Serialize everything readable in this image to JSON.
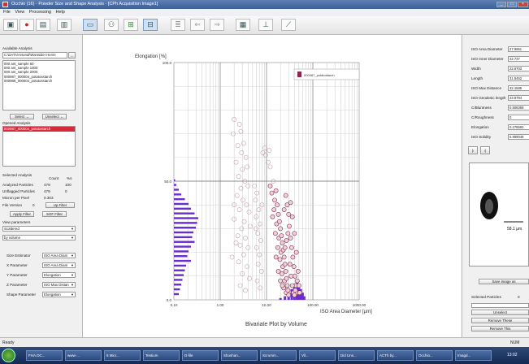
{
  "window": {
    "title": "Occhio (16) · Powder Size and Shape Analysis · [CPh Acquisition Image1]"
  },
  "menu": [
    "File",
    "View",
    "Processing",
    "Help"
  ],
  "left_panel": {
    "available_label": "Available Analysis",
    "path": "C:\\DATA\\Arsenal\\Warssider Henre",
    "files": [
      "000 ant_sample 60",
      "000 ant_sample 1000",
      "000 ant_sample 2000",
      "000987_000004_potatosstarch",
      "000988_000004_potatosstarch"
    ],
    "select_label": "Select →",
    "unselect_label": "Unselect ←",
    "opened_label": "Opened Analysis",
    "opened_item": "000987_000004_potatostarch",
    "selected_label": "Selected Analysis",
    "count_label": "Count",
    "pct_label": "%s",
    "rows": [
      {
        "label": "Analyzed Particles",
        "count": "479",
        "pct": "100"
      },
      {
        "label": "Unflagged Particles",
        "count": "479",
        "pct": "0"
      },
      {
        "label": "Micron per Pixel",
        "count": "0.303",
        "pct": ""
      }
    ],
    "filter_label": "File Version",
    "filter_value": "0",
    "up_filter": "Up Filter",
    "apply_filter": "Apply Filter",
    "sof_filter": "SOF Filter",
    "view_params": "View parameters",
    "view_mode": "Scattered",
    "weight_mode": "by volume",
    "params": [
      {
        "label": "Size Estimator",
        "value": "ISO Area Diam"
      },
      {
        "label": "X Parameter",
        "value": "ISO Area Diam"
      },
      {
        "label": "Y Parameter",
        "value": "Elongation"
      },
      {
        "label": "Z Parameter",
        "value": "ISO Max Distan"
      },
      {
        "label": "Shape Parameter",
        "value": "Elongation"
      }
    ]
  },
  "chart_data": {
    "type": "scatter",
    "title": "Bivariate Plot by Volume",
    "xlabel": "ISO Area Diameter [µm]",
    "ylabel": "Elongation [%]",
    "x_scale": "log",
    "xlim": [
      0.1,
      1000
    ],
    "ylim": [
      0,
      100
    ],
    "x_ticks": [
      "0.10",
      "1.00",
      "10.00",
      "100.00",
      "1000.00"
    ],
    "y_ticks": [
      "100.0",
      "50.0",
      "0.0"
    ],
    "legend": [
      "000987_potatostarch"
    ],
    "legend_position": "top-right",
    "grid": true,
    "series_color": "#c0a0b0",
    "dense_color": "#8b2a48",
    "hist_color": "#6a2dd0",
    "points": [
      [
        2.0,
        76
      ],
      [
        2.6,
        74
      ],
      [
        1.9,
        70
      ],
      [
        2.8,
        71
      ],
      [
        2.4,
        65
      ],
      [
        3.2,
        66
      ],
      [
        2.9,
        62
      ],
      [
        3.6,
        60
      ],
      [
        2.2,
        58
      ],
      [
        3.0,
        55
      ],
      [
        3.8,
        56
      ],
      [
        2.5,
        52
      ],
      [
        3.4,
        50
      ],
      [
        2.8,
        47
      ],
      [
        4.0,
        48
      ],
      [
        2.3,
        44
      ],
      [
        3.1,
        42
      ],
      [
        3.7,
        40
      ],
      [
        2.6,
        38
      ],
      [
        4.2,
        37
      ],
      [
        2.0,
        34
      ],
      [
        3.3,
        33
      ],
      [
        2.9,
        30
      ],
      [
        4.4,
        31
      ],
      [
        2.4,
        27
      ],
      [
        3.5,
        26
      ],
      [
        2.7,
        23
      ],
      [
        4.0,
        22
      ],
      [
        3.2,
        19
      ],
      [
        2.5,
        16
      ],
      [
        3.8,
        14
      ],
      [
        3.0,
        11
      ],
      [
        4.3,
        9
      ],
      [
        2.7,
        6
      ],
      [
        3.5,
        4
      ],
      [
        2.2,
        24
      ],
      [
        2.0,
        40
      ],
      [
        1.8,
        18
      ],
      [
        5.5,
        48
      ],
      [
        6.2,
        45
      ],
      [
        5.8,
        42
      ],
      [
        6.8,
        38
      ],
      [
        6.0,
        35
      ],
      [
        7.2,
        32
      ],
      [
        6.5,
        28
      ],
      [
        7.5,
        25
      ],
      [
        6.1,
        22
      ],
      [
        7.0,
        19
      ],
      [
        6.6,
        15
      ],
      [
        7.8,
        12
      ],
      [
        6.3,
        8
      ],
      [
        7.3,
        5
      ],
      [
        5.9,
        30
      ],
      [
        8.0,
        40
      ],
      [
        8.3,
        62
      ],
      [
        9.2,
        64
      ],
      [
        9.6,
        61
      ],
      [
        10.8,
        58
      ],
      [
        11.4,
        63
      ],
      [
        12.0,
        56
      ],
      [
        12,
        48
      ],
      [
        13,
        45
      ],
      [
        14,
        50
      ],
      [
        15,
        42
      ],
      [
        16,
        46
      ],
      [
        14.5,
        38
      ],
      [
        13.5,
        35
      ],
      [
        17,
        40
      ],
      [
        18,
        36
      ],
      [
        16.5,
        32
      ],
      [
        15.5,
        28
      ],
      [
        19,
        33
      ],
      [
        20,
        30
      ],
      [
        18.5,
        26
      ],
      [
        17.5,
        22
      ],
      [
        21,
        27
      ],
      [
        22,
        24
      ],
      [
        20.5,
        20
      ],
      [
        19.5,
        17
      ],
      [
        23,
        21
      ],
      [
        24,
        18
      ],
      [
        22.5,
        14
      ],
      [
        21.5,
        11
      ],
      [
        25,
        15
      ],
      [
        26,
        12
      ],
      [
        24.5,
        8
      ],
      [
        23.5,
        5
      ],
      [
        27,
        9
      ],
      [
        28,
        6
      ],
      [
        26.5,
        3
      ],
      [
        29,
        4
      ],
      [
        30,
        2
      ],
      [
        16,
        18
      ],
      [
        18,
        12
      ],
      [
        20,
        8
      ],
      [
        22,
        6
      ],
      [
        25,
        22
      ],
      [
        27,
        25
      ],
      [
        29,
        28
      ],
      [
        31,
        31
      ],
      [
        33,
        26
      ],
      [
        35,
        22
      ],
      [
        37,
        18
      ],
      [
        39,
        14
      ],
      [
        41,
        10
      ],
      [
        43,
        6
      ],
      [
        45,
        3
      ],
      [
        32,
        15
      ],
      [
        34,
        10
      ],
      [
        36,
        6
      ],
      [
        38,
        3
      ],
      [
        40,
        2
      ],
      [
        30,
        36
      ],
      [
        28,
        40
      ],
      [
        26,
        44
      ],
      [
        24,
        38
      ],
      [
        33,
        41
      ],
      [
        36,
        35
      ],
      [
        40,
        28
      ],
      [
        44,
        20
      ],
      [
        48,
        12
      ],
      [
        50,
        6
      ],
      [
        52,
        3
      ],
      [
        46,
        8
      ],
      [
        42,
        4
      ]
    ],
    "histogram": [
      {
        "y": 50,
        "v": 0.05
      },
      {
        "y": 48,
        "v": 0.1
      },
      {
        "y": 46,
        "v": 0.2
      },
      {
        "y": 44,
        "v": 0.3
      },
      {
        "y": 42,
        "v": 0.45
      },
      {
        "y": 40,
        "v": 0.6
      },
      {
        "y": 38,
        "v": 0.7
      },
      {
        "y": 36,
        "v": 0.85
      },
      {
        "y": 34,
        "v": 1.0
      },
      {
        "y": 32,
        "v": 0.95
      },
      {
        "y": 30,
        "v": 0.9
      },
      {
        "y": 28,
        "v": 0.8
      },
      {
        "y": 26,
        "v": 0.75
      },
      {
        "y": 24,
        "v": 0.85
      },
      {
        "y": 22,
        "v": 0.7
      },
      {
        "y": 20,
        "v": 0.6
      },
      {
        "y": 18,
        "v": 0.55
      },
      {
        "y": 16,
        "v": 0.7
      },
      {
        "y": 14,
        "v": 0.5
      },
      {
        "y": 12,
        "v": 0.45
      },
      {
        "y": 10,
        "v": 0.4
      },
      {
        "y": 8,
        "v": 0.35
      },
      {
        "y": 6,
        "v": 0.3
      },
      {
        "y": 4,
        "v": 0.25
      },
      {
        "y": 2,
        "v": 0.2
      }
    ],
    "bottom_histogram": [
      {
        "x": 20,
        "v": 0.1
      },
      {
        "x": 25,
        "v": 0.2
      },
      {
        "x": 30,
        "v": 0.35
      },
      {
        "x": 35,
        "v": 0.6
      },
      {
        "x": 40,
        "v": 0.9
      },
      {
        "x": 45,
        "v": 1.0
      },
      {
        "x": 50,
        "v": 0.8
      },
      {
        "x": 55,
        "v": 0.6
      },
      {
        "x": 60,
        "v": 0.4
      },
      {
        "x": 65,
        "v": 0.2
      }
    ]
  },
  "right_panel": {
    "params": [
      {
        "label": "ISO Area Diameter",
        "value": "27.9961"
      },
      {
        "label": "ISO Inner Diameter",
        "value": "22.737"
      },
      {
        "label": "Width",
        "value": "22.6703"
      },
      {
        "label": "Length",
        "value": "31.5452"
      },
      {
        "label": "ISO Max Distance",
        "value": "32.1585"
      },
      {
        "label": "ISO Geodesic length",
        "value": "23.8794"
      },
      {
        "label": "C/Bluntness",
        "value": "0.908358"
      },
      {
        "label": "C/Roughness",
        "value": "0"
      },
      {
        "label": "Elongation",
        "value": "0.278593"
      },
      {
        "label": "ISO Solidity",
        "value": "0.989048"
      }
    ],
    "scale_label": "58.1 µm",
    "save_image": "Save image as",
    "selected_particles_label": "Selected Particles",
    "selected_particles_value": "0",
    "unselect": "Unselect",
    "remove_these": "Remove These",
    "remove_this": "Remove This"
  },
  "status": {
    "left": "Ready",
    "right": "NUM"
  },
  "taskbar": {
    "items": [
      "FHA.DC...",
      "www-...",
      "5 Micr...",
      "Testium",
      "D-file",
      "Shoshan...",
      "Scrumm...",
      "Vil...",
      "Did Uns...",
      "ACTh by...",
      "Occhio...",
      "Imagd..."
    ],
    "clock": "13:02"
  }
}
